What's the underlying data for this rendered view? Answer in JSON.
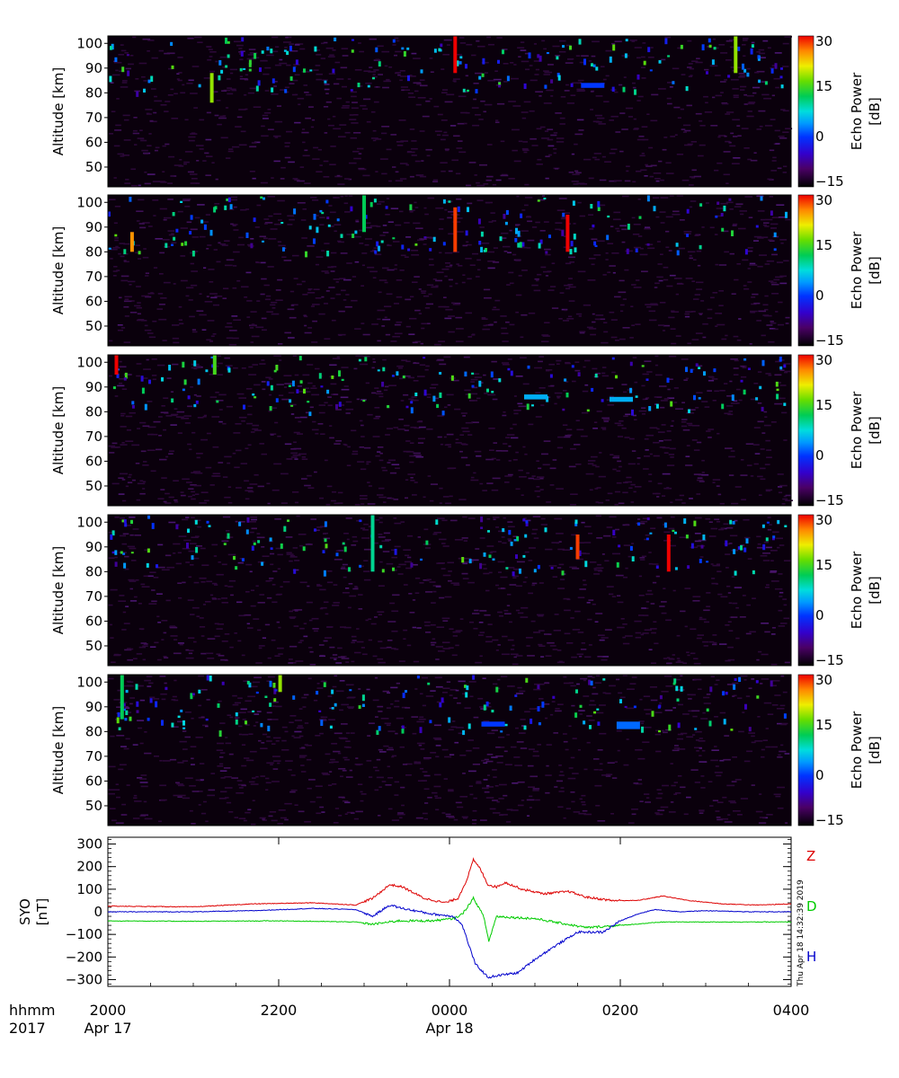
{
  "colorbar": {
    "label_line1": "Echo Power",
    "label_line2": "[dB]",
    "range": [
      -15,
      30
    ],
    "ticks": [
      "30",
      "15",
      "0",
      "−15"
    ],
    "tick_values": [
      30,
      15,
      0,
      -15
    ]
  },
  "chart_data": [
    {
      "type": "heatmap",
      "ylabel": "Altitude [km]",
      "yticks": [
        "100",
        "90",
        "80",
        "70",
        "60",
        "50"
      ],
      "ylim": [
        42,
        103
      ],
      "xlim_hours": [
        20,
        28
      ],
      "value_range_db": [
        -15,
        30
      ],
      "features": [
        {
          "time": "2113",
          "alt_top": 88,
          "alt_bottom": 76,
          "db": 18
        },
        {
          "time": "0004",
          "alt_top": 103,
          "alt_bottom": 88,
          "db": 30
        },
        {
          "time": "0321",
          "alt_top": 103,
          "alt_bottom": 88,
          "db": 18
        },
        {
          "time": "0140",
          "alt_top": 84,
          "alt_bottom": 82,
          "db": 0
        }
      ]
    },
    {
      "type": "heatmap",
      "ylabel": "Altitude [km]",
      "yticks": [
        "100",
        "90",
        "80",
        "70",
        "60",
        "50"
      ],
      "ylim": [
        42,
        103
      ],
      "xlim_hours": [
        20,
        28
      ],
      "value_range_db": [
        -15,
        30
      ],
      "features": [
        {
          "time": "2017",
          "alt_top": 88,
          "alt_bottom": 80,
          "db": 25
        },
        {
          "time": "2300",
          "alt_top": 103,
          "alt_bottom": 88,
          "db": 12
        },
        {
          "time": "0004",
          "alt_top": 98,
          "alt_bottom": 80,
          "db": 28
        },
        {
          "time": "0123",
          "alt_top": 95,
          "alt_bottom": 80,
          "db": 30
        }
      ]
    },
    {
      "type": "heatmap",
      "ylabel": "Altitude [km]",
      "yticks": [
        "100",
        "90",
        "80",
        "70",
        "60",
        "50"
      ],
      "ylim": [
        42,
        103
      ],
      "xlim_hours": [
        20,
        28
      ],
      "value_range_db": [
        -15,
        30
      ],
      "features": [
        {
          "time": "2006",
          "alt_top": 103,
          "alt_bottom": 95,
          "db": 30
        },
        {
          "time": "2115",
          "alt_top": 103,
          "alt_bottom": 95,
          "db": 15
        },
        {
          "time": "0100",
          "alt_top": 87,
          "alt_bottom": 85,
          "db": 5
        },
        {
          "time": "0200",
          "alt_top": 86,
          "alt_bottom": 84,
          "db": 5
        }
      ]
    },
    {
      "type": "heatmap",
      "ylabel": "Altitude [km]",
      "yticks": [
        "100",
        "90",
        "80",
        "70",
        "60",
        "50"
      ],
      "ylim": [
        42,
        103
      ],
      "xlim_hours": [
        20,
        28
      ],
      "value_range_db": [
        -15,
        30
      ],
      "features": [
        {
          "time": "2306",
          "alt_top": 103,
          "alt_bottom": 80,
          "db": 10
        },
        {
          "time": "0130",
          "alt_top": 95,
          "alt_bottom": 85,
          "db": 28
        },
        {
          "time": "0234",
          "alt_top": 95,
          "alt_bottom": 80,
          "db": 30
        }
      ]
    },
    {
      "type": "heatmap",
      "ylabel": "Altitude [km]",
      "yticks": [
        "100",
        "90",
        "80",
        "70",
        "60",
        "50"
      ],
      "ylim": [
        42,
        103
      ],
      "xlim_hours": [
        20,
        28
      ],
      "value_range_db": [
        -15,
        30
      ],
      "features": [
        {
          "time": "2010",
          "alt_top": 103,
          "alt_bottom": 85,
          "db": 12
        },
        {
          "time": "2201",
          "alt_top": 103,
          "alt_bottom": 96,
          "db": 18
        },
        {
          "time": "0030",
          "alt_top": 84,
          "alt_bottom": 82,
          "db": 0
        },
        {
          "time": "0205",
          "alt_top": 84,
          "alt_bottom": 81,
          "db": 2
        }
      ]
    },
    {
      "type": "line",
      "ylabel_line1": "SYO",
      "ylabel_line2": "[nT]",
      "yticks": [
        "300",
        "200",
        "100",
        "0",
        "−100",
        "−200",
        "−300"
      ],
      "ytick_values": [
        300,
        200,
        100,
        0,
        -100,
        -200,
        -300
      ],
      "ylim": [
        -330,
        330
      ],
      "xlim_hours": [
        20,
        28
      ],
      "series": [
        {
          "name": "Z",
          "color": "#dd0000",
          "points": [
            [
              20,
              25
            ],
            [
              21,
              22
            ],
            [
              21.7,
              35
            ],
            [
              22.4,
              40
            ],
            [
              22.9,
              30
            ],
            [
              23.1,
              60
            ],
            [
              23.3,
              120
            ],
            [
              23.45,
              110
            ],
            [
              23.7,
              60
            ],
            [
              23.95,
              40
            ],
            [
              24.1,
              60
            ],
            [
              24.2,
              140
            ],
            [
              24.28,
              230
            ],
            [
              24.36,
              190
            ],
            [
              24.45,
              120
            ],
            [
              24.55,
              110
            ],
            [
              24.65,
              130
            ],
            [
              24.85,
              100
            ],
            [
              25.1,
              80
            ],
            [
              25.4,
              90
            ],
            [
              25.6,
              65
            ],
            [
              25.9,
              50
            ],
            [
              26.2,
              50
            ],
            [
              26.5,
              70
            ],
            [
              26.8,
              50
            ],
            [
              27.2,
              35
            ],
            [
              27.6,
              30
            ],
            [
              28,
              35
            ]
          ]
        },
        {
          "name": "D",
          "color": "#00cc00",
          "points": [
            [
              20,
              -40
            ],
            [
              21,
              -42
            ],
            [
              22,
              -40
            ],
            [
              22.9,
              -45
            ],
            [
              23.1,
              -55
            ],
            [
              23.4,
              -40
            ],
            [
              23.8,
              -40
            ],
            [
              24.05,
              -30
            ],
            [
              24.15,
              -10
            ],
            [
              24.28,
              60
            ],
            [
              24.4,
              -20
            ],
            [
              24.46,
              -130
            ],
            [
              24.55,
              -20
            ],
            [
              24.75,
              -25
            ],
            [
              25,
              -30
            ],
            [
              25.3,
              -50
            ],
            [
              25.6,
              -70
            ],
            [
              26,
              -60
            ],
            [
              26.5,
              -45
            ],
            [
              27,
              -45
            ],
            [
              28,
              -45
            ]
          ]
        },
        {
          "name": "H",
          "color": "#0000cc",
          "points": [
            [
              20,
              0
            ],
            [
              21,
              0
            ],
            [
              21.7,
              5
            ],
            [
              22.4,
              15
            ],
            [
              22.9,
              10
            ],
            [
              23.1,
              -20
            ],
            [
              23.3,
              30
            ],
            [
              23.45,
              15
            ],
            [
              23.8,
              -10
            ],
            [
              24.05,
              -20
            ],
            [
              24.15,
              -60
            ],
            [
              24.3,
              -230
            ],
            [
              24.45,
              -290
            ],
            [
              24.6,
              -280
            ],
            [
              24.8,
              -270
            ],
            [
              25.0,
              -210
            ],
            [
              25.2,
              -160
            ],
            [
              25.5,
              -90
            ],
            [
              25.8,
              -90
            ],
            [
              26.0,
              -40
            ],
            [
              26.2,
              -10
            ],
            [
              26.4,
              10
            ],
            [
              26.7,
              0
            ],
            [
              27,
              5
            ],
            [
              27.5,
              0
            ],
            [
              28,
              0
            ]
          ]
        }
      ]
    }
  ],
  "xaxis": {
    "row1_prefix": "hhmm",
    "row2_prefix": "2017",
    "time_ticks": [
      "2000",
      "2200",
      "0000",
      "0200",
      "0400"
    ],
    "date_labels": [
      {
        "at_hour": 20,
        "text": "Apr 17"
      },
      {
        "at_hour": 24,
        "text": "Apr 18"
      }
    ]
  },
  "timestamp": "Thu Apr 18 14:32:39 2019"
}
